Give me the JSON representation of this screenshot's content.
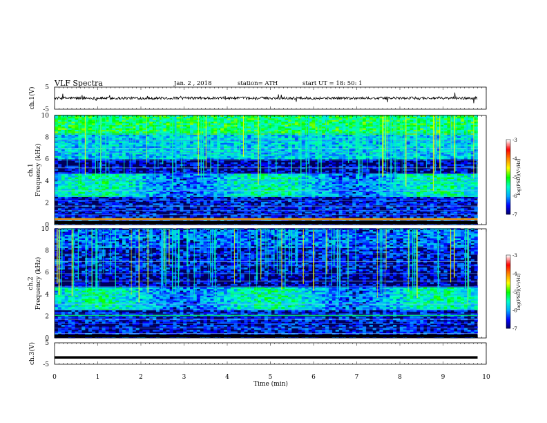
{
  "header": {
    "title": "VLF  Spectra",
    "date": "Jan.  2  , 2018",
    "station": "station= ATH",
    "start_time": "start  UT  =   18: 50: 1"
  },
  "chart_data": [
    {
      "type": "line",
      "name": "ch1-waveform",
      "ylabel": "ch.1(V)",
      "ylim": [
        -5,
        5
      ],
      "yticks": [
        "5",
        "-5"
      ],
      "x": [
        0,
        1,
        2,
        3,
        4,
        5,
        6,
        7,
        8,
        9,
        9.8
      ],
      "y": [
        0,
        0,
        0,
        0,
        0,
        0,
        0,
        0,
        0,
        0,
        0
      ]
    },
    {
      "type": "heatmap",
      "name": "ch1-spectrogram",
      "ylabel": "Frequency  (kHz)",
      "channel_label": "ch.1",
      "ylim": [
        0,
        10
      ],
      "yticks": [
        "0",
        "2",
        "4",
        "6",
        "8",
        "10"
      ],
      "colorbar": {
        "label": "log(PSD)(V²/Hz)",
        "range": [
          -7,
          -3
        ],
        "ticks": [
          "-3",
          "-4",
          "-5",
          "-6",
          "-7"
        ]
      }
    },
    {
      "type": "heatmap",
      "name": "ch2-spectrogram",
      "ylabel": "Frequency  (kHz)",
      "channel_label": "ch.2",
      "ylim": [
        0,
        10
      ],
      "yticks": [
        "0",
        "2",
        "4",
        "6",
        "8",
        "10"
      ],
      "colorbar": {
        "label": "log(PSD)(V²/Hz)",
        "range": [
          -7,
          -3
        ],
        "ticks": [
          "-3",
          "-4",
          "-5",
          "-6",
          "-7"
        ]
      }
    },
    {
      "type": "line",
      "name": "ch3-waveform",
      "ylabel": "ch.3(V)",
      "ylim": [
        -5,
        5
      ],
      "yticks": [
        "5",
        "-5"
      ],
      "x": [
        0,
        9.8
      ],
      "y": [
        -1.8,
        -1.8
      ]
    }
  ],
  "x_axis": {
    "label": "Time  (min)",
    "ticks": [
      "0",
      "1",
      "2",
      "3",
      "4",
      "5",
      "6",
      "7",
      "8",
      "9",
      "10"
    ],
    "range": [
      0,
      10
    ]
  },
  "colors": {
    "colormap": [
      "#000060",
      "#0000ff",
      "#00aaff",
      "#00ffcc",
      "#00ff00",
      "#ffff00",
      "#ff8800",
      "#ff0000",
      "#ffffff"
    ]
  }
}
